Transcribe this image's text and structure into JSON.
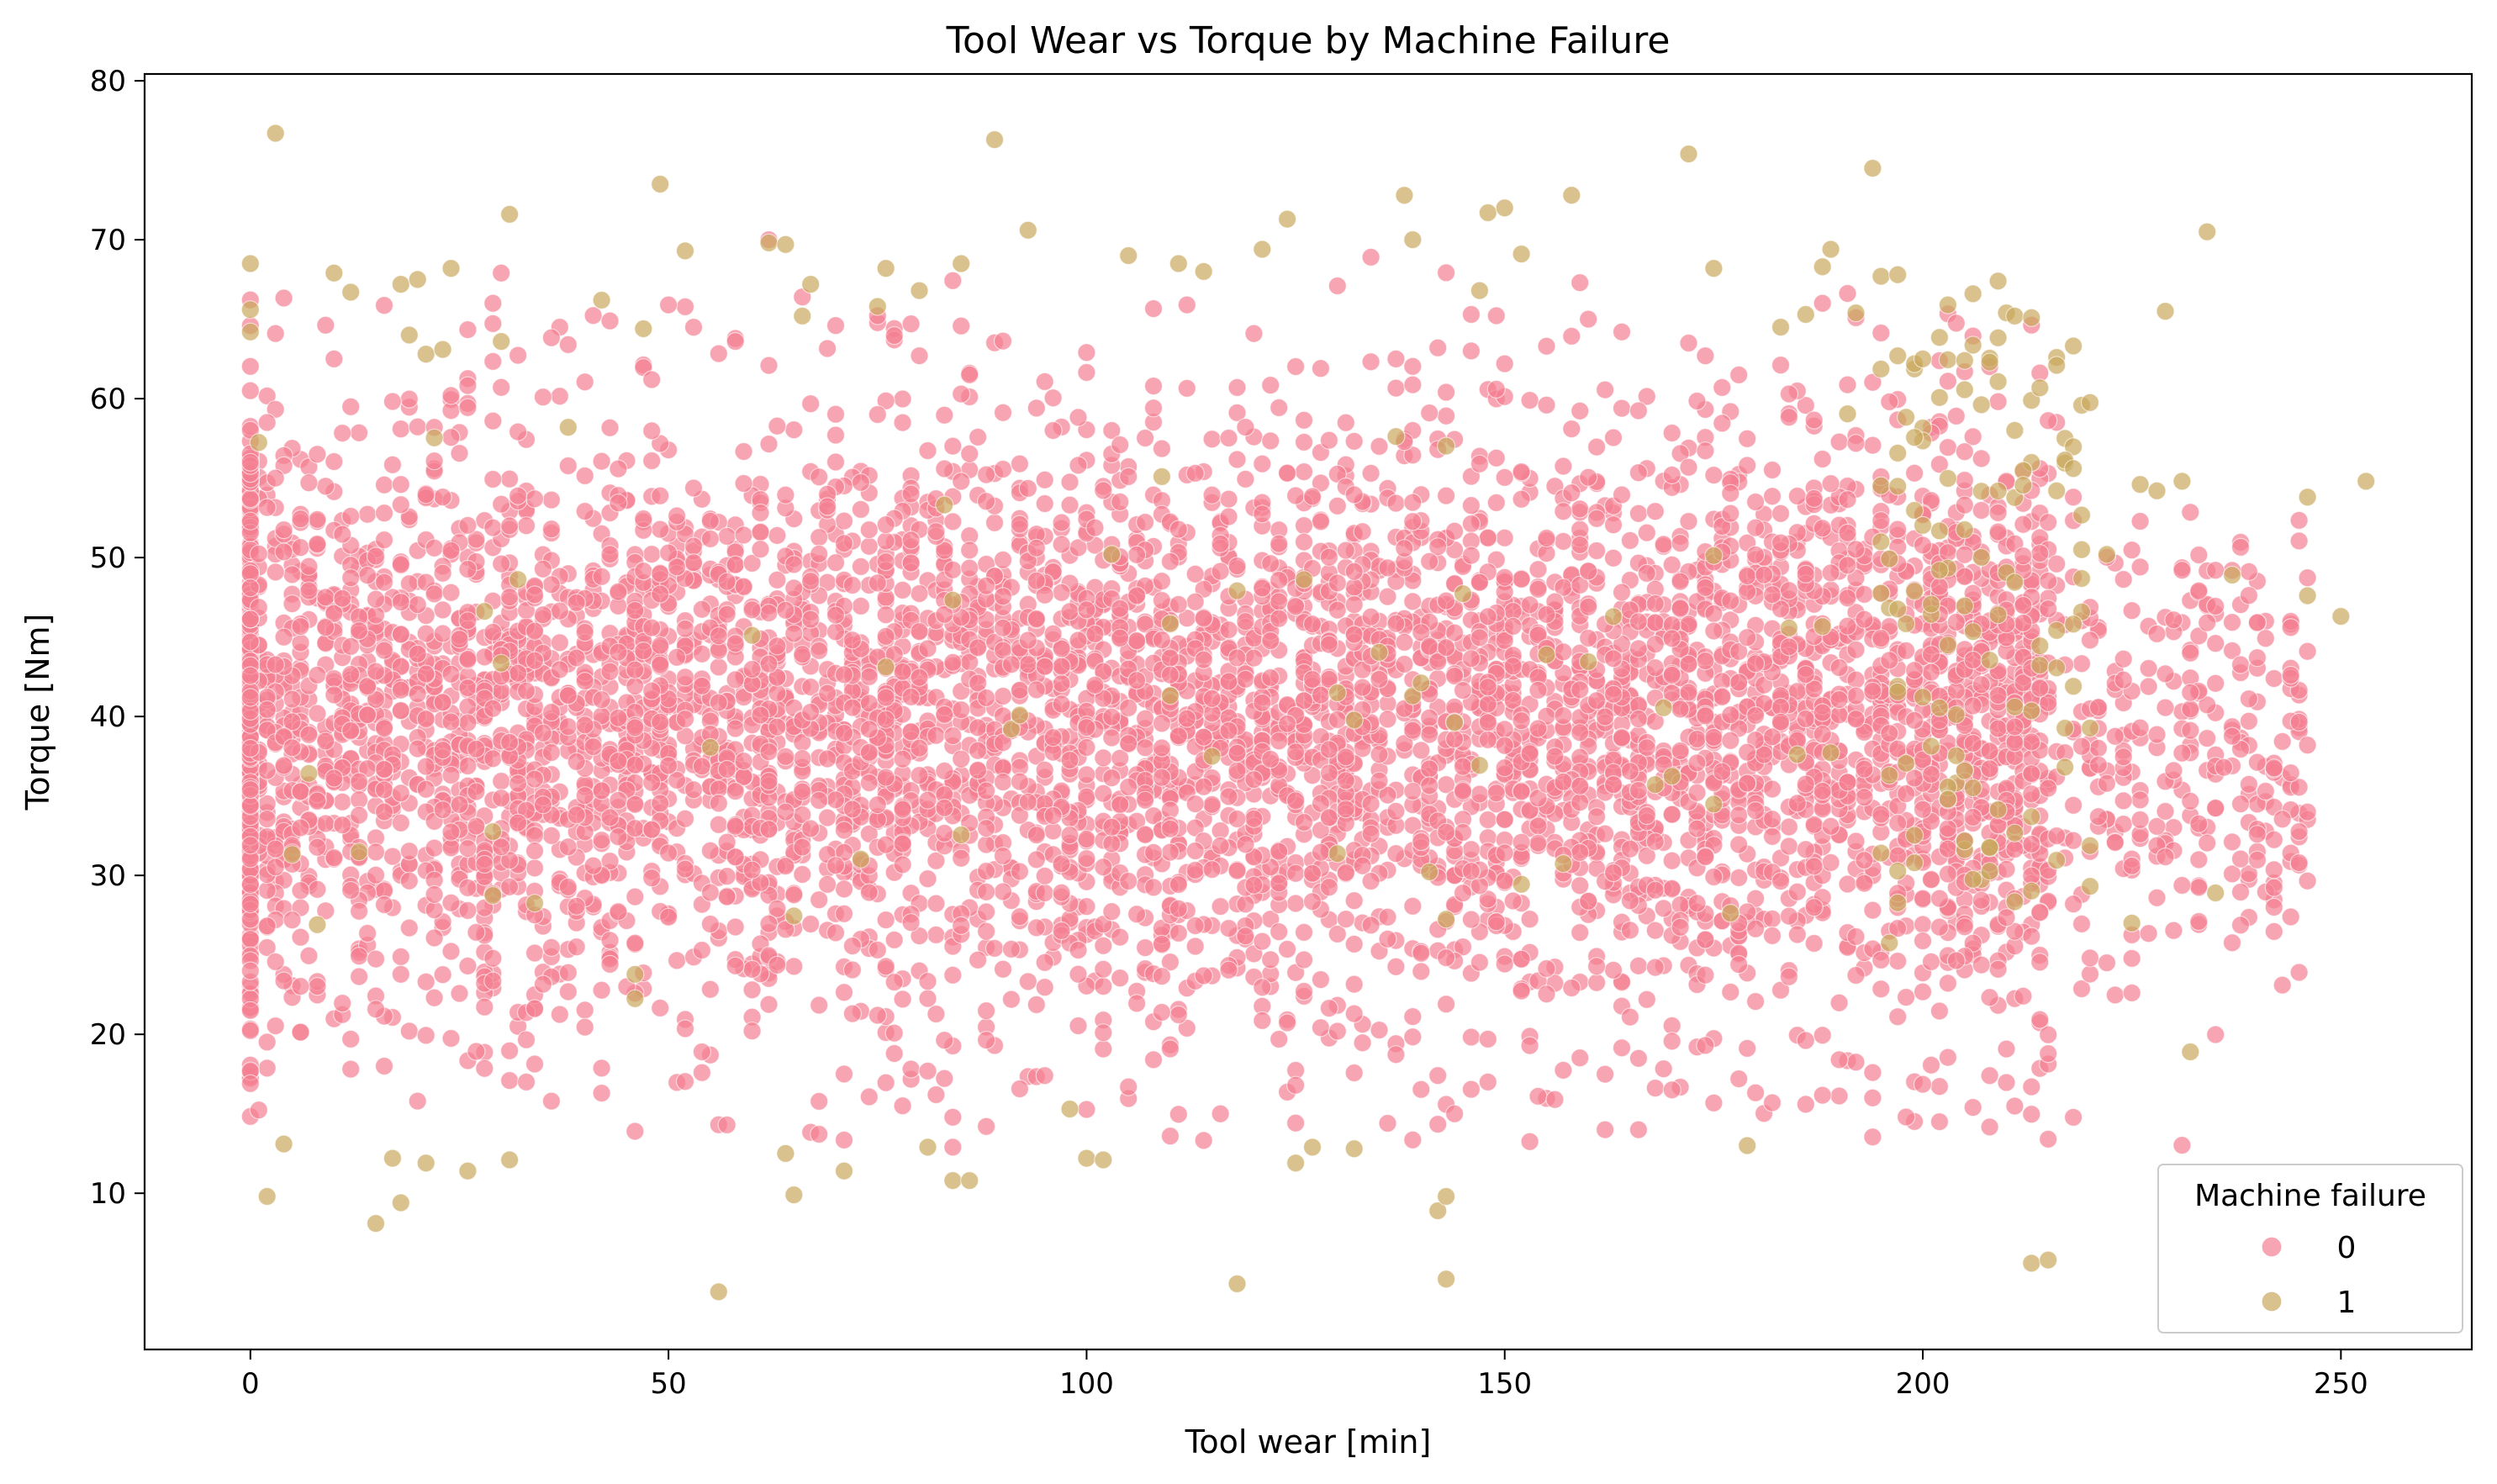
{
  "chart_data": {
    "type": "scatter",
    "title": "Tool Wear vs Torque by Machine Failure",
    "xlabel": "Tool wear [min]",
    "ylabel": "Torque [Nm]",
    "xlim": [
      -12.65,
      265.65
    ],
    "ylim": [
      0.17,
      80.43
    ],
    "xticks": [
      0,
      50,
      100,
      150,
      200,
      250
    ],
    "yticks": [
      10,
      20,
      30,
      40,
      50,
      60,
      70,
      80
    ],
    "grid": false,
    "legend": {
      "title": "Machine failure",
      "placement": "lower right"
    },
    "point_opacity": 0.7,
    "series": [
      {
        "name": "0",
        "color": "#f37f91",
        "description": "dense cloud of ~9,650 points spanning tool wear 0–246 min, torque mostly 13–70 Nm centred near 40 Nm",
        "points": [
          [
            0,
            60.5
          ],
          [
            0,
            56.0
          ],
          [
            0,
            52.3
          ],
          [
            0,
            48.1
          ],
          [
            0,
            44.7
          ],
          [
            0,
            41.2
          ],
          [
            0,
            38.0
          ],
          [
            0,
            35.4
          ],
          [
            0,
            31.9
          ],
          [
            0,
            28.2
          ],
          [
            0,
            24.0
          ],
          [
            0,
            21.5
          ],
          [
            0,
            17.7
          ],
          [
            0,
            16.9
          ],
          [
            2,
            58.5
          ],
          [
            3,
            64.1
          ],
          [
            4,
            45.0
          ],
          [
            6,
            33.0
          ],
          [
            8,
            56.5
          ],
          [
            10,
            62.5
          ],
          [
            12,
            19.7
          ],
          [
            14,
            40.1
          ],
          [
            16,
            18.0
          ],
          [
            18,
            54.6
          ],
          [
            20,
            15.8
          ],
          [
            22,
            28.8
          ],
          [
            24,
            60.2
          ],
          [
            26,
            24.3
          ],
          [
            29,
            66.0
          ],
          [
            30,
            67.9
          ],
          [
            31,
            52.0
          ],
          [
            33,
            17.0
          ],
          [
            36,
            15.8
          ],
          [
            38,
            63.4
          ],
          [
            40,
            45.3
          ],
          [
            42,
            16.3
          ],
          [
            44,
            37.2
          ],
          [
            46,
            13.9
          ],
          [
            48,
            61.2
          ],
          [
            50,
            65.9
          ],
          [
            52,
            30.4
          ],
          [
            54,
            18.9
          ],
          [
            57,
            14.3
          ],
          [
            58,
            63.6
          ],
          [
            60,
            22.8
          ],
          [
            62,
            70.0
          ],
          [
            64,
            26.6
          ],
          [
            66,
            66.4
          ],
          [
            70,
            64.6
          ],
          [
            72,
            21.3
          ],
          [
            75,
            59.0
          ],
          [
            78,
            15.5
          ],
          [
            80,
            62.7
          ],
          [
            82,
            16.2
          ],
          [
            84,
            12.9
          ],
          [
            86,
            61.5
          ],
          [
            88,
            14.2
          ],
          [
            90,
            24.1
          ],
          [
            92,
            55.9
          ],
          [
            95,
            17.4
          ],
          [
            96,
            58.0
          ],
          [
            100,
            62.9
          ],
          [
            102,
            20.1
          ],
          [
            104,
            57.1
          ],
          [
            105,
            16.7
          ],
          [
            108,
            18.4
          ],
          [
            110,
            13.6
          ],
          [
            112,
            65.9
          ],
          [
            114,
            38.7
          ],
          [
            116,
            15.0
          ],
          [
            118,
            60.7
          ],
          [
            120,
            64.1
          ],
          [
            122,
            24.7
          ],
          [
            125,
            16.8
          ],
          [
            128,
            61.9
          ],
          [
            130,
            67.1
          ],
          [
            132,
            21.3
          ],
          [
            134,
            68.9
          ],
          [
            136,
            14.4
          ],
          [
            138,
            57.3
          ],
          [
            140,
            25.1
          ],
          [
            142,
            63.2
          ],
          [
            144,
            15.0
          ],
          [
            146,
            63.0
          ],
          [
            148,
            19.7
          ],
          [
            150,
            62.2
          ],
          [
            152,
            55.4
          ],
          [
            154,
            16.1
          ],
          [
            156,
            15.9
          ],
          [
            158,
            58.1
          ],
          [
            159,
            67.3
          ],
          [
            160,
            65.0
          ],
          [
            162,
            14.0
          ],
          [
            164,
            64.2
          ],
          [
            166,
            14.0
          ],
          [
            168,
            47.1
          ],
          [
            170,
            16.5
          ],
          [
            172,
            63.5
          ],
          [
            174,
            19.3
          ],
          [
            176,
            60.7
          ],
          [
            178,
            17.2
          ],
          [
            180,
            53.5
          ],
          [
            182,
            15.7
          ],
          [
            184,
            60.3
          ],
          [
            186,
            15.6
          ],
          [
            188,
            56.2
          ],
          [
            190,
            18.4
          ],
          [
            192,
            44.2
          ],
          [
            194,
            16.0
          ],
          [
            196,
            59.8
          ],
          [
            198,
            14.8
          ],
          [
            200,
            52.7
          ],
          [
            202,
            14.5
          ],
          [
            204,
            58.9
          ],
          [
            206,
            15.4
          ],
          [
            208,
            17.4
          ],
          [
            210,
            49.4
          ],
          [
            212,
            22.4
          ],
          [
            214,
            55.6
          ],
          [
            215,
            13.4
          ],
          [
            216,
            49.6
          ],
          [
            218,
            28.2
          ],
          [
            220,
            44.8
          ],
          [
            222,
            24.5
          ],
          [
            224,
            42.3
          ],
          [
            226,
            33.5
          ],
          [
            228,
            45.2
          ],
          [
            230,
            36.6
          ],
          [
            232,
            41.5
          ],
          [
            233,
            27.1
          ],
          [
            234,
            45.9
          ],
          [
            235,
            49.2
          ],
          [
            236,
            36.8
          ],
          [
            238,
            34.5
          ],
          [
            239,
            39.7
          ],
          [
            240,
            43.7
          ],
          [
            241,
            35.3
          ],
          [
            242,
            28.0
          ],
          [
            243,
            23.1
          ],
          [
            244,
            42.6
          ],
          [
            245,
            23.9
          ],
          [
            245,
            30.8
          ],
          [
            246,
            44.1
          ]
        ]
      },
      {
        "name": "1",
        "color": "#c9a85c",
        "description": "sparse failures, concentrated at high tool wear (>200 min) and at torque extremes (<15 or >60 Nm)",
        "points": [
          [
            0,
            68.5
          ],
          [
            0,
            65.6
          ],
          [
            0,
            64.2
          ],
          [
            2,
            9.8
          ],
          [
            3,
            76.7
          ],
          [
            4,
            13.1
          ],
          [
            8,
            26.9
          ],
          [
            10,
            67.9
          ],
          [
            12,
            66.7
          ],
          [
            15,
            8.1
          ],
          [
            17,
            12.2
          ],
          [
            18,
            67.2
          ],
          [
            18,
            9.4
          ],
          [
            19,
            64.0
          ],
          [
            20,
            67.5
          ],
          [
            21,
            62.8
          ],
          [
            21,
            11.9
          ],
          [
            23,
            63.1
          ],
          [
            24,
            68.2
          ],
          [
            26,
            11.4
          ],
          [
            30,
            63.6
          ],
          [
            31,
            71.6
          ],
          [
            31,
            12.1
          ],
          [
            38,
            58.2
          ],
          [
            42,
            66.2
          ],
          [
            47,
            64.4
          ],
          [
            49,
            73.5
          ],
          [
            52,
            69.3
          ],
          [
            56,
            3.8
          ],
          [
            62,
            69.8
          ],
          [
            64,
            69.7
          ],
          [
            64,
            12.5
          ],
          [
            65,
            9.9
          ],
          [
            66,
            65.2
          ],
          [
            67,
            67.2
          ],
          [
            71,
            11.4
          ],
          [
            75,
            65.8
          ],
          [
            76,
            68.2
          ],
          [
            80,
            66.8
          ],
          [
            81,
            12.9
          ],
          [
            84,
            10.8
          ],
          [
            85,
            68.5
          ],
          [
            86,
            10.8
          ],
          [
            89,
            76.3
          ],
          [
            93,
            70.6
          ],
          [
            98,
            15.3
          ],
          [
            100,
            12.2
          ],
          [
            102,
            12.1
          ],
          [
            105,
            69.0
          ],
          [
            111,
            68.5
          ],
          [
            114,
            68.0
          ],
          [
            118,
            4.3
          ],
          [
            121,
            69.4
          ],
          [
            124,
            71.3
          ],
          [
            125,
            11.9
          ],
          [
            127,
            12.9
          ],
          [
            132,
            12.8
          ],
          [
            139,
            70.0
          ],
          [
            142,
            8.9
          ],
          [
            143,
            4.6
          ],
          [
            143,
            9.8
          ],
          [
            147,
            66.8
          ],
          [
            148,
            71.7
          ],
          [
            150,
            72.0
          ],
          [
            152,
            69.1
          ],
          [
            158,
            72.8
          ],
          [
            172,
            75.4
          ],
          [
            175,
            68.2
          ],
          [
            179,
            13.0
          ],
          [
            183,
            64.5
          ],
          [
            186,
            65.3
          ],
          [
            188,
            68.3
          ],
          [
            189,
            69.4
          ],
          [
            192,
            65.4
          ],
          [
            194,
            74.5
          ],
          [
            195,
            67.7
          ],
          [
            197,
            67.8
          ],
          [
            199,
            62.2
          ],
          [
            200,
            62.5
          ],
          [
            203,
            65.9
          ],
          [
            205,
            62.4
          ],
          [
            206,
            66.6
          ],
          [
            208,
            62.3
          ],
          [
            209,
            67.4
          ],
          [
            210,
            65.4
          ],
          [
            211,
            65.2
          ],
          [
            213,
            65.1
          ],
          [
            213,
            5.6
          ],
          [
            215,
            5.8
          ],
          [
            216,
            62.1
          ],
          [
            218,
            55.6
          ],
          [
            219,
            50.5
          ],
          [
            222,
            50.2
          ],
          [
            225,
            27.0
          ],
          [
            226,
            54.6
          ],
          [
            228,
            54.2
          ],
          [
            229,
            65.5
          ],
          [
            231,
            54.8
          ],
          [
            232,
            18.9
          ],
          [
            234,
            70.5
          ],
          [
            235,
            28.9
          ],
          [
            237,
            48.9
          ],
          [
            246,
            53.8
          ],
          [
            246,
            47.6
          ],
          [
            250,
            46.3
          ],
          [
            253,
            54.8
          ]
        ]
      }
    ]
  }
}
